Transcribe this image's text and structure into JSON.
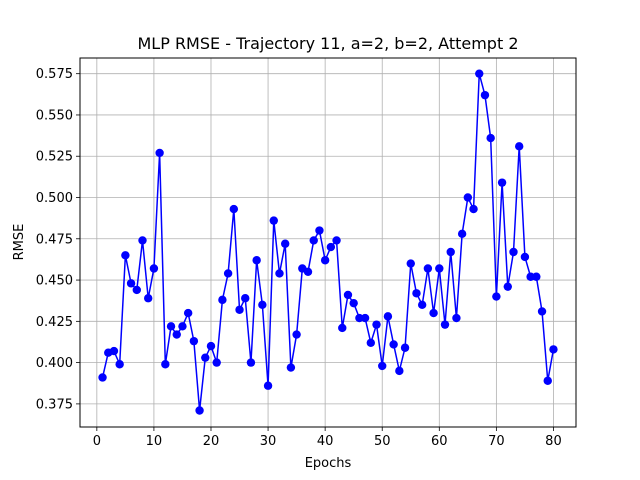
{
  "chart_data": {
    "type": "line",
    "title": "MLP RMSE - Trajectory 11, a=2, b=2, Attempt 2",
    "xlabel": "Epochs",
    "ylabel": "RMSE",
    "xlim": [
      -2.95,
      83.95
    ],
    "ylim": [
      0.361,
      0.5845
    ],
    "xticks": [
      0,
      10,
      20,
      30,
      40,
      50,
      60,
      70,
      80
    ],
    "yticks": [
      0.375,
      0.4,
      0.425,
      0.45,
      0.475,
      0.5,
      0.525,
      0.55,
      0.575
    ],
    "xtick_labels": [
      "0",
      "10",
      "20",
      "30",
      "40",
      "50",
      "60",
      "70",
      "80"
    ],
    "ytick_labels": [
      "0.375",
      "0.400",
      "0.425",
      "0.450",
      "0.475",
      "0.500",
      "0.525",
      "0.550",
      "0.575"
    ],
    "grid": true,
    "series": [
      {
        "color": "#0000ff",
        "marker": "circle",
        "x": [
          1,
          2,
          3,
          4,
          5,
          6,
          7,
          8,
          9,
          10,
          11,
          12,
          13,
          14,
          15,
          16,
          17,
          18,
          19,
          20,
          21,
          22,
          23,
          24,
          25,
          26,
          27,
          28,
          29,
          30,
          31,
          32,
          33,
          34,
          35,
          36,
          37,
          38,
          39,
          40,
          41,
          42,
          43,
          44,
          45,
          46,
          47,
          48,
          49,
          50,
          51,
          52,
          53,
          54,
          55,
          56,
          57,
          58,
          59,
          60,
          61,
          62,
          63,
          64,
          65,
          66,
          67,
          68,
          69,
          70,
          71,
          72,
          73,
          74,
          75,
          76,
          77,
          78,
          79,
          80
        ],
        "values": [
          0.391,
          0.406,
          0.407,
          0.399,
          0.465,
          0.448,
          0.444,
          0.474,
          0.439,
          0.457,
          0.527,
          0.399,
          0.422,
          0.417,
          0.422,
          0.43,
          0.413,
          0.371,
          0.403,
          0.41,
          0.4,
          0.438,
          0.454,
          0.493,
          0.432,
          0.439,
          0.4,
          0.462,
          0.435,
          0.386,
          0.486,
          0.454,
          0.472,
          0.397,
          0.417,
          0.457,
          0.455,
          0.474,
          0.48,
          0.462,
          0.47,
          0.474,
          0.421,
          0.441,
          0.436,
          0.427,
          0.427,
          0.412,
          0.423,
          0.398,
          0.428,
          0.411,
          0.395,
          0.409,
          0.46,
          0.442,
          0.435,
          0.457,
          0.43,
          0.457,
          0.423,
          0.467,
          0.427,
          0.478,
          0.5,
          0.493,
          0.575,
          0.562,
          0.536,
          0.44,
          0.509,
          0.446,
          0.467,
          0.531,
          0.464,
          0.452,
          0.452,
          0.431,
          0.389,
          0.408
        ]
      }
    ]
  }
}
